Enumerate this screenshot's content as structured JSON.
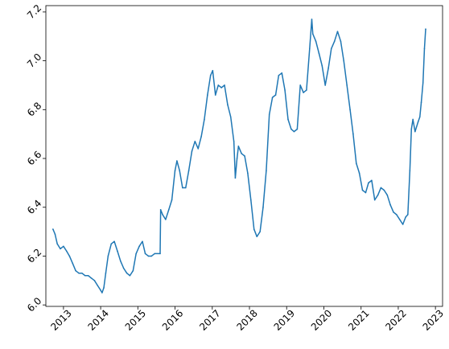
{
  "chart_data": {
    "type": "line",
    "title": "",
    "xlabel": "",
    "ylabel": "",
    "x_ticks": [
      "2013",
      "2014",
      "2015",
      "2016",
      "2017",
      "2018",
      "2019",
      "2020",
      "2021",
      "2022",
      "2023"
    ],
    "y_ticks": [
      "6.0",
      "6.2",
      "6.4",
      "6.6",
      "6.8",
      "7.0",
      "7.2"
    ],
    "xlim": [
      "2012-07-12",
      "2023-03-12"
    ],
    "ylim": [
      5.994,
      7.226
    ],
    "grid": false,
    "legend": "none",
    "series": [
      {
        "color": "#1f77b4",
        "points": [
          [
            "2012-09-20",
            6.31
          ],
          [
            "2012-10-10",
            6.29
          ],
          [
            "2012-11-01",
            6.25
          ],
          [
            "2012-12-01",
            6.23
          ],
          [
            "2013-01-01",
            6.24
          ],
          [
            "2013-02-01",
            6.22
          ],
          [
            "2013-03-01",
            6.2
          ],
          [
            "2013-04-01",
            6.17
          ],
          [
            "2013-05-01",
            6.14
          ],
          [
            "2013-06-01",
            6.13
          ],
          [
            "2013-07-01",
            6.13
          ],
          [
            "2013-08-01",
            6.12
          ],
          [
            "2013-09-01",
            6.12
          ],
          [
            "2013-10-01",
            6.11
          ],
          [
            "2013-11-01",
            6.1
          ],
          [
            "2013-12-01",
            6.08
          ],
          [
            "2014-01-01",
            6.06
          ],
          [
            "2014-01-15",
            6.05
          ],
          [
            "2014-02-01",
            6.07
          ],
          [
            "2014-02-20",
            6.13
          ],
          [
            "2014-03-15",
            6.2
          ],
          [
            "2014-04-15",
            6.25
          ],
          [
            "2014-05-15",
            6.26
          ],
          [
            "2014-06-15",
            6.22
          ],
          [
            "2014-07-15",
            6.18
          ],
          [
            "2014-08-15",
            6.15
          ],
          [
            "2014-09-15",
            6.13
          ],
          [
            "2014-10-15",
            6.12
          ],
          [
            "2014-11-15",
            6.14
          ],
          [
            "2014-12-15",
            6.21
          ],
          [
            "2015-01-15",
            6.24
          ],
          [
            "2015-02-15",
            6.26
          ],
          [
            "2015-03-15",
            6.21
          ],
          [
            "2015-04-15",
            6.2
          ],
          [
            "2015-05-15",
            6.2
          ],
          [
            "2015-06-15",
            6.21
          ],
          [
            "2015-08-08",
            6.21
          ],
          [
            "2015-08-13",
            6.39
          ],
          [
            "2015-09-01",
            6.37
          ],
          [
            "2015-10-01",
            6.35
          ],
          [
            "2015-11-01",
            6.39
          ],
          [
            "2015-12-01",
            6.43
          ],
          [
            "2016-01-01",
            6.55
          ],
          [
            "2016-01-20",
            6.59
          ],
          [
            "2016-02-15",
            6.55
          ],
          [
            "2016-03-15",
            6.48
          ],
          [
            "2016-04-15",
            6.48
          ],
          [
            "2016-05-15",
            6.55
          ],
          [
            "2016-06-15",
            6.63
          ],
          [
            "2016-07-15",
            6.67
          ],
          [
            "2016-08-15",
            6.64
          ],
          [
            "2016-09-15",
            6.69
          ],
          [
            "2016-10-15",
            6.76
          ],
          [
            "2016-11-15",
            6.86
          ],
          [
            "2016-12-15",
            6.94
          ],
          [
            "2017-01-05",
            6.96
          ],
          [
            "2017-02-01",
            6.86
          ],
          [
            "2017-03-01",
            6.9
          ],
          [
            "2017-04-01",
            6.89
          ],
          [
            "2017-05-01",
            6.9
          ],
          [
            "2017-06-01",
            6.82
          ],
          [
            "2017-07-01",
            6.77
          ],
          [
            "2017-08-01",
            6.67
          ],
          [
            "2017-08-15",
            6.52
          ],
          [
            "2017-09-01",
            6.6
          ],
          [
            "2017-09-15",
            6.65
          ],
          [
            "2017-10-15",
            6.62
          ],
          [
            "2017-11-15",
            6.61
          ],
          [
            "2017-12-15",
            6.54
          ],
          [
            "2018-01-15",
            6.43
          ],
          [
            "2018-02-15",
            6.31
          ],
          [
            "2018-03-15",
            6.28
          ],
          [
            "2018-04-15",
            6.3
          ],
          [
            "2018-05-15",
            6.4
          ],
          [
            "2018-06-15",
            6.55
          ],
          [
            "2018-07-15",
            6.78
          ],
          [
            "2018-08-15",
            6.85
          ],
          [
            "2018-09-15",
            6.86
          ],
          [
            "2018-10-15",
            6.94
          ],
          [
            "2018-11-15",
            6.95
          ],
          [
            "2018-12-15",
            6.88
          ],
          [
            "2019-01-15",
            6.76
          ],
          [
            "2019-02-15",
            6.72
          ],
          [
            "2019-03-15",
            6.71
          ],
          [
            "2019-04-15",
            6.72
          ],
          [
            "2019-05-15",
            6.9
          ],
          [
            "2019-06-15",
            6.87
          ],
          [
            "2019-07-15",
            6.88
          ],
          [
            "2019-08-15",
            7.05
          ],
          [
            "2019-09-05",
            7.17
          ],
          [
            "2019-09-15",
            7.11
          ],
          [
            "2019-10-15",
            7.08
          ],
          [
            "2019-11-15",
            7.03
          ],
          [
            "2019-12-15",
            6.98
          ],
          [
            "2020-01-15",
            6.9
          ],
          [
            "2020-02-15",
            6.97
          ],
          [
            "2020-03-15",
            7.05
          ],
          [
            "2020-04-15",
            7.08
          ],
          [
            "2020-05-15",
            7.12
          ],
          [
            "2020-06-15",
            7.08
          ],
          [
            "2020-07-15",
            7.0
          ],
          [
            "2020-08-15",
            6.9
          ],
          [
            "2020-09-15",
            6.8
          ],
          [
            "2020-10-15",
            6.7
          ],
          [
            "2020-11-15",
            6.58
          ],
          [
            "2020-12-15",
            6.54
          ],
          [
            "2021-01-15",
            6.47
          ],
          [
            "2021-02-15",
            6.46
          ],
          [
            "2021-03-15",
            6.5
          ],
          [
            "2021-04-15",
            6.51
          ],
          [
            "2021-05-15",
            6.43
          ],
          [
            "2021-06-15",
            6.45
          ],
          [
            "2021-07-15",
            6.48
          ],
          [
            "2021-08-15",
            6.47
          ],
          [
            "2021-09-15",
            6.45
          ],
          [
            "2021-10-15",
            6.41
          ],
          [
            "2021-11-15",
            6.38
          ],
          [
            "2021-12-15",
            6.37
          ],
          [
            "2022-01-15",
            6.35
          ],
          [
            "2022-02-15",
            6.33
          ],
          [
            "2022-03-15",
            6.36
          ],
          [
            "2022-04-05",
            6.37
          ],
          [
            "2022-04-25",
            6.55
          ],
          [
            "2022-05-10",
            6.72
          ],
          [
            "2022-05-25",
            6.76
          ],
          [
            "2022-06-15",
            6.71
          ],
          [
            "2022-07-15",
            6.75
          ],
          [
            "2022-08-01",
            6.77
          ],
          [
            "2022-08-15",
            6.83
          ],
          [
            "2022-09-01",
            6.91
          ],
          [
            "2022-09-15",
            7.05
          ],
          [
            "2022-09-27",
            7.13
          ]
        ]
      }
    ]
  }
}
